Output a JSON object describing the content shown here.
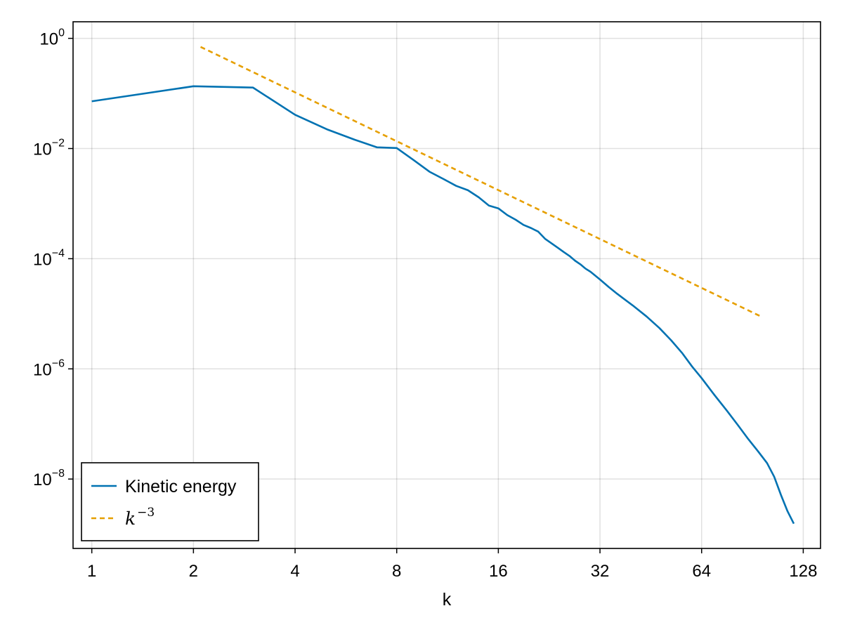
{
  "chart_data": {
    "type": "line",
    "title": "",
    "xlabel": "k",
    "ylabel": "",
    "xscale": "log2",
    "yscale": "log10",
    "xlim": [
      0.88,
      144
    ],
    "ylim": [
      5.5e-10,
      2.0
    ],
    "grid": true,
    "legend_position": "bottom-left",
    "xticks": [
      {
        "value": 1,
        "label": "1"
      },
      {
        "value": 2,
        "label": "2"
      },
      {
        "value": 4,
        "label": "4"
      },
      {
        "value": 8,
        "label": "8"
      },
      {
        "value": 16,
        "label": "16"
      },
      {
        "value": 32,
        "label": "32"
      },
      {
        "value": 64,
        "label": "64"
      },
      {
        "value": 128,
        "label": "128"
      }
    ],
    "yticks": [
      {
        "value": 1,
        "base": "10",
        "exp": "0"
      },
      {
        "value": 0.01,
        "base": "10",
        "exp": "−2"
      },
      {
        "value": 0.0001,
        "base": "10",
        "exp": "−4"
      },
      {
        "value": 1e-06,
        "base": "10",
        "exp": "−6"
      },
      {
        "value": 1e-08,
        "base": "10",
        "exp": "−8"
      }
    ],
    "series": [
      {
        "name": "Kinetic energy",
        "color": "#0072b2",
        "style": "solid",
        "points": [
          [
            1,
            0.072
          ],
          [
            2,
            0.135
          ],
          [
            3,
            0.128
          ],
          [
            4,
            0.041
          ],
          [
            5,
            0.022
          ],
          [
            6,
            0.0145
          ],
          [
            7,
            0.0105
          ],
          [
            8,
            0.0102
          ],
          [
            9,
            0.0061
          ],
          [
            10,
            0.0038
          ],
          [
            11,
            0.0028
          ],
          [
            12,
            0.0021
          ],
          [
            13,
            0.00175
          ],
          [
            14,
            0.0013
          ],
          [
            15,
            0.00092
          ],
          [
            16,
            0.00082
          ],
          [
            17,
            0.00062
          ],
          [
            18,
            0.00051
          ],
          [
            19,
            0.00041
          ],
          [
            20,
            0.00036
          ],
          [
            21,
            0.00031
          ],
          [
            22,
            0.00023
          ],
          [
            23,
            0.00019
          ],
          [
            24,
            0.000158
          ],
          [
            25,
            0.000132
          ],
          [
            26,
            0.000112
          ],
          [
            27,
            9.2e-05
          ],
          [
            28,
            7.9e-05
          ],
          [
            29,
            6.6e-05
          ],
          [
            30,
            5.8e-05
          ],
          [
            32,
            4.2e-05
          ],
          [
            34,
            3.05e-05
          ],
          [
            36,
            2.3e-05
          ],
          [
            40,
            1.42e-05
          ],
          [
            44,
            8.9e-06
          ],
          [
            48,
            5.5e-06
          ],
          [
            52,
            3.3e-06
          ],
          [
            56,
            1.95e-06
          ],
          [
            60,
            1.1e-06
          ],
          [
            64,
            6.8e-07
          ],
          [
            70,
            3.3e-07
          ],
          [
            76,
            1.75e-07
          ],
          [
            82,
            9.5e-08
          ],
          [
            88,
            5.3e-08
          ],
          [
            94,
            3.2e-08
          ],
          [
            100,
            1.95e-08
          ],
          [
            105,
            1.1e-08
          ],
          [
            110,
            5.1e-09
          ],
          [
            115,
            2.6e-09
          ],
          [
            120,
            1.55e-09
          ]
        ]
      },
      {
        "name": "k^{-3}",
        "legend_base": "k",
        "legend_exp": "−3",
        "color": "#e69f00",
        "style": "dashed",
        "points": [
          [
            2.1,
            0.7
          ],
          [
            95,
            9.2e-06
          ]
        ]
      }
    ]
  }
}
